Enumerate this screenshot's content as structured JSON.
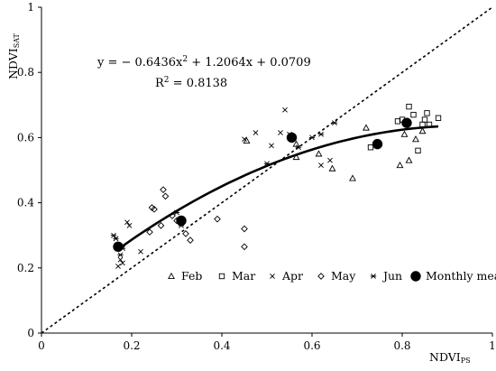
{
  "chart_data": {
    "type": "scatter",
    "xlabel_main": "NDVI",
    "xlabel_sub": "PS",
    "ylabel_main": "NDVI",
    "ylabel_sub": "SAT",
    "xlim": [
      0,
      1
    ],
    "ylim": [
      0,
      1
    ],
    "xticks": [
      {
        "value": 0,
        "label": "0"
      },
      {
        "value": 0.2,
        "label": "0.2"
      },
      {
        "value": 0.4,
        "label": "0.4"
      },
      {
        "value": 0.6,
        "label": "0.6"
      },
      {
        "value": 0.8,
        "label": "0.8"
      },
      {
        "value": 1,
        "label": "1"
      }
    ],
    "yticks": [
      {
        "value": 0,
        "label": "0"
      },
      {
        "value": 0.2,
        "label": "0.2"
      },
      {
        "value": 0.4,
        "label": "0.4"
      },
      {
        "value": 0.6,
        "label": "0.6"
      },
      {
        "value": 0.8,
        "label": "0.8"
      },
      {
        "value": 1,
        "label": "1"
      }
    ],
    "grid": false,
    "legend_position": "bottom-right",
    "equation": {
      "lhs": "y = − 0.6436x",
      "exp": "2",
      "rhs": " + 1.2064x + 0.0709",
      "r2_lhs": "R",
      "r2_exp": "2",
      "r2_rhs": " = 0.8138"
    },
    "fit": {
      "a": -0.6436,
      "b": 1.2064,
      "c": 0.0709,
      "x_range": [
        0.17,
        0.88
      ]
    },
    "reference_line": {
      "type": "1:1",
      "style": "dashed"
    },
    "series": [
      {
        "name": "Feb",
        "marker": "triangle",
        "points": [
          [
            0.455,
            0.59
          ],
          [
            0.565,
            0.54
          ],
          [
            0.565,
            0.58
          ],
          [
            0.615,
            0.55
          ],
          [
            0.645,
            0.505
          ],
          [
            0.69,
            0.475
          ],
          [
            0.72,
            0.63
          ],
          [
            0.795,
            0.515
          ],
          [
            0.805,
            0.61
          ],
          [
            0.815,
            0.53
          ],
          [
            0.83,
            0.595
          ],
          [
            0.845,
            0.62
          ]
        ]
      },
      {
        "name": "Mar",
        "marker": "square",
        "points": [
          [
            0.73,
            0.57
          ],
          [
            0.79,
            0.65
          ],
          [
            0.8,
            0.655
          ],
          [
            0.815,
            0.695
          ],
          [
            0.825,
            0.67
          ],
          [
            0.835,
            0.56
          ],
          [
            0.845,
            0.64
          ],
          [
            0.85,
            0.655
          ],
          [
            0.855,
            0.675
          ],
          [
            0.86,
            0.64
          ],
          [
            0.88,
            0.66
          ]
        ]
      },
      {
        "name": "Apr",
        "marker": "x",
        "points": [
          [
            0.17,
            0.205
          ],
          [
            0.175,
            0.225
          ],
          [
            0.18,
            0.215
          ],
          [
            0.19,
            0.34
          ],
          [
            0.195,
            0.33
          ],
          [
            0.22,
            0.25
          ],
          [
            0.45,
            0.595
          ],
          [
            0.475,
            0.615
          ],
          [
            0.51,
            0.575
          ],
          [
            0.53,
            0.615
          ],
          [
            0.54,
            0.685
          ],
          [
            0.55,
            0.61
          ],
          [
            0.62,
            0.515
          ],
          [
            0.64,
            0.53
          ]
        ]
      },
      {
        "name": "May",
        "marker": "diamond",
        "points": [
          [
            0.24,
            0.31
          ],
          [
            0.245,
            0.385
          ],
          [
            0.25,
            0.38
          ],
          [
            0.265,
            0.33
          ],
          [
            0.27,
            0.44
          ],
          [
            0.275,
            0.42
          ],
          [
            0.29,
            0.36
          ],
          [
            0.3,
            0.345
          ],
          [
            0.32,
            0.305
          ],
          [
            0.33,
            0.285
          ],
          [
            0.39,
            0.35
          ],
          [
            0.45,
            0.32
          ],
          [
            0.45,
            0.265
          ]
        ]
      },
      {
        "name": "Jun",
        "marker": "asterisk",
        "points": [
          [
            0.16,
            0.3
          ],
          [
            0.165,
            0.29
          ],
          [
            0.17,
            0.27
          ],
          [
            0.175,
            0.24
          ],
          [
            0.18,
            0.26
          ],
          [
            0.3,
            0.37
          ],
          [
            0.31,
            0.33
          ],
          [
            0.5,
            0.52
          ],
          [
            0.57,
            0.57
          ],
          [
            0.6,
            0.6
          ],
          [
            0.62,
            0.61
          ],
          [
            0.65,
            0.645
          ]
        ]
      },
      {
        "name": "Monthly mean",
        "marker": "circle-filled",
        "points": [
          [
            0.17,
            0.265
          ],
          [
            0.31,
            0.345
          ],
          [
            0.555,
            0.6
          ],
          [
            0.745,
            0.58
          ],
          [
            0.81,
            0.645
          ]
        ]
      }
    ]
  }
}
